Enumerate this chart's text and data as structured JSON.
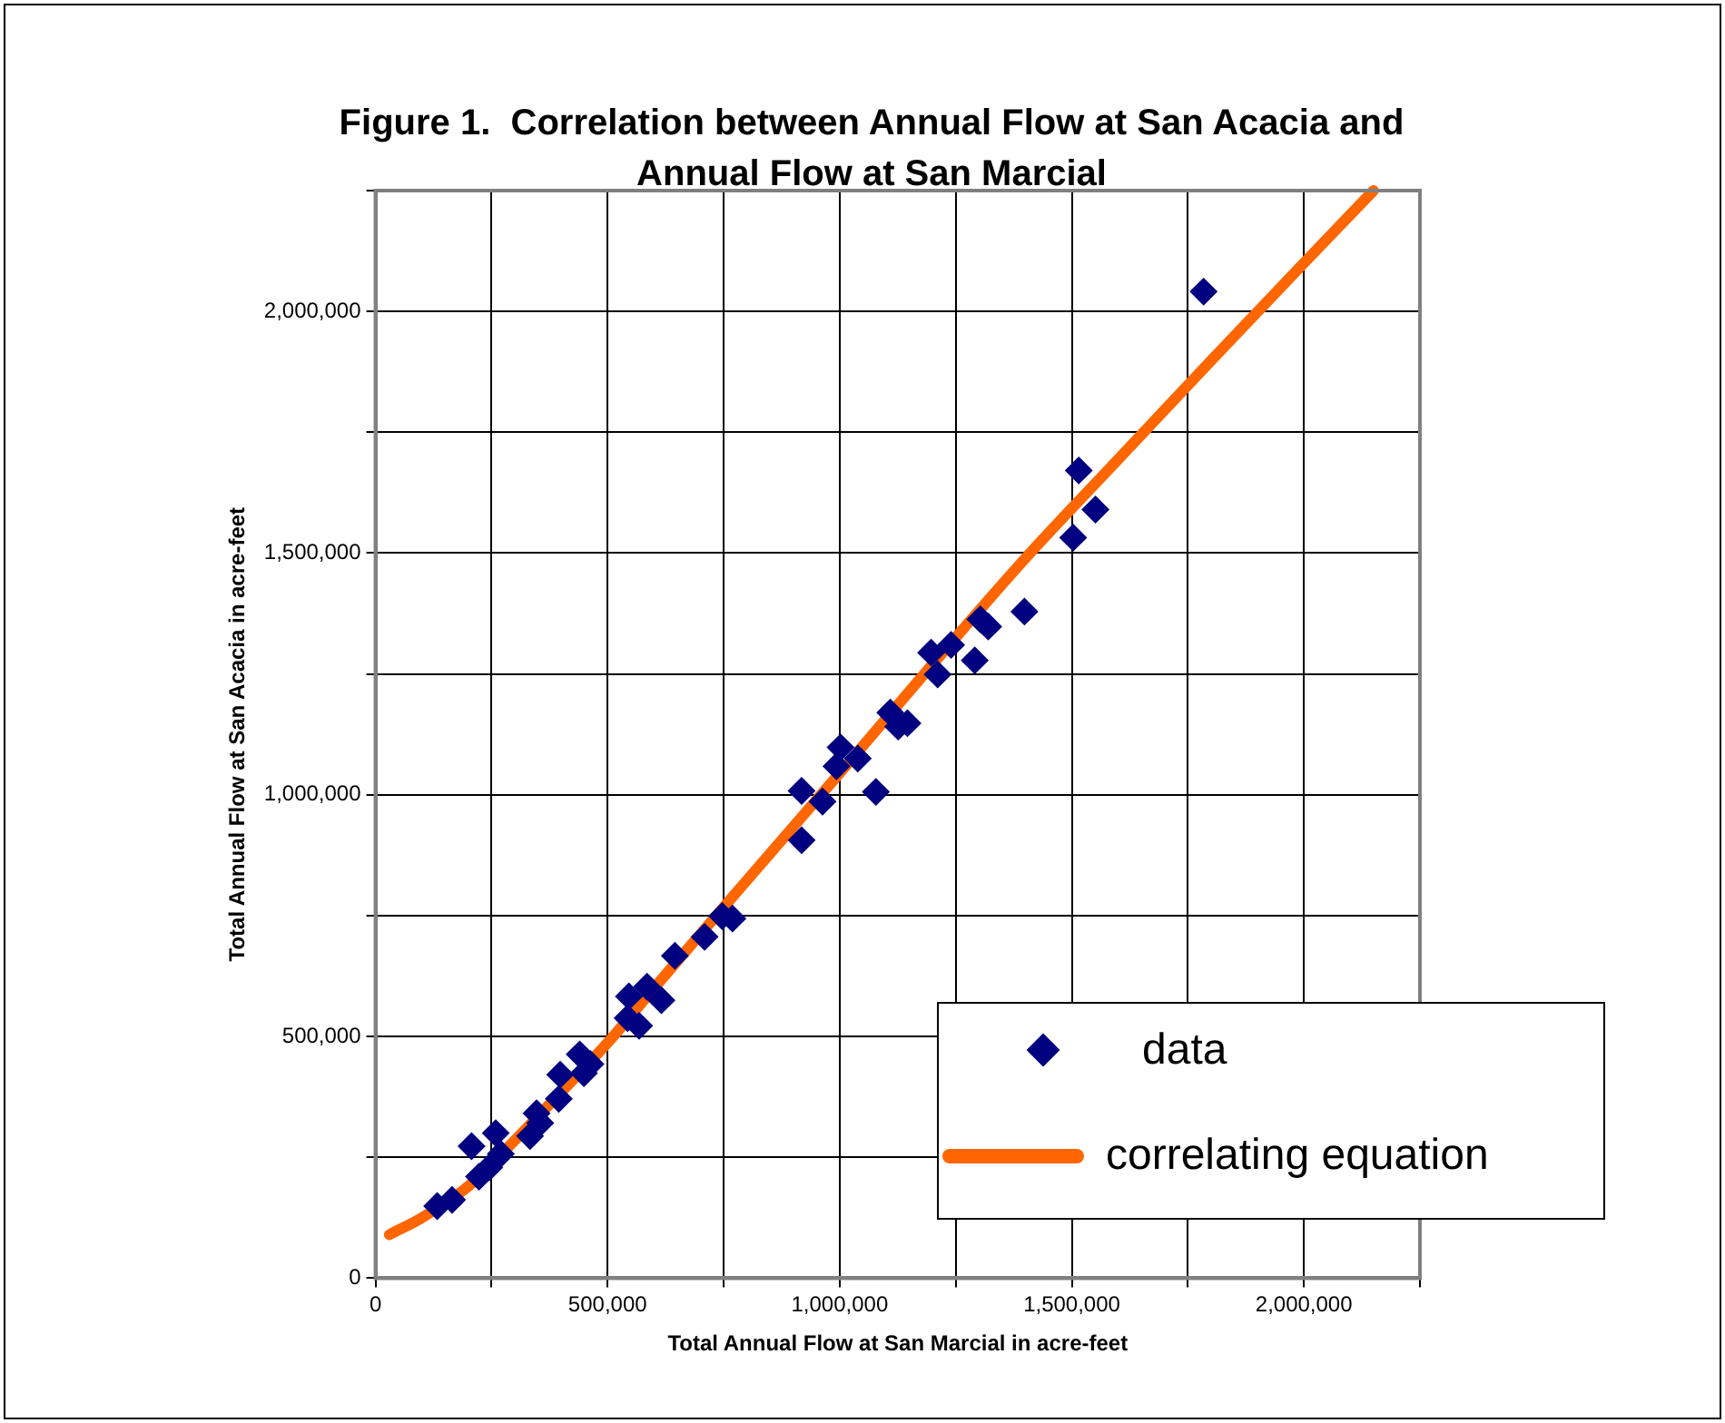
{
  "chart_data": {
    "type": "scatter",
    "title": "Figure 1.  Correlation between Annual Flow at San Acacia and Annual Flow at San Marcial",
    "xlabel": "Total Annual Flow at San Marcial in acre-feet",
    "ylabel": "Total Annual Flow at San Acacia in acre-feet",
    "xlim": [
      0,
      2250000
    ],
    "ylim": [
      0,
      2250000
    ],
    "xticks": [
      {
        "value": 0,
        "label": "0"
      },
      {
        "value": 250000,
        "label": null
      },
      {
        "value": 500000,
        "label": "500,000"
      },
      {
        "value": 750000,
        "label": null
      },
      {
        "value": 1000000,
        "label": "1,000,000"
      },
      {
        "value": 1250000,
        "label": null
      },
      {
        "value": 1500000,
        "label": "1,500,000"
      },
      {
        "value": 1750000,
        "label": null
      },
      {
        "value": 2000000,
        "label": "2,000,000"
      },
      {
        "value": 2250000,
        "label": null
      }
    ],
    "yticks": [
      {
        "value": 0,
        "label": "0"
      },
      {
        "value": 250000,
        "label": null
      },
      {
        "value": 500000,
        "label": "500,000"
      },
      {
        "value": 750000,
        "label": null
      },
      {
        "value": 1000000,
        "label": "1,000,000"
      },
      {
        "value": 1250000,
        "label": null
      },
      {
        "value": 1500000,
        "label": "1,500,000"
      },
      {
        "value": 1750000,
        "label": null
      },
      {
        "value": 2000000,
        "label": "2,000,000"
      },
      {
        "value": 2250000,
        "label": null
      }
    ],
    "grid": true,
    "legend": "bottom right",
    "series": [
      {
        "name": "data",
        "type": "scatter",
        "color": "#000080",
        "marker": "diamond",
        "x": [
          133000,
          165000,
          207000,
          223000,
          245000,
          259000,
          270000,
          333000,
          347000,
          355000,
          395000,
          398000,
          440000,
          449000,
          463000,
          543000,
          546000,
          568000,
          585000,
          616000,
          645000,
          709000,
          747000,
          769000,
          918000,
          918000,
          963000,
          993000,
          1002000,
          1039000,
          1078000,
          1109000,
          1126000,
          1146000,
          1197000,
          1211000,
          1240000,
          1291000,
          1303000,
          1320000,
          1398000,
          1503000,
          1515000,
          1551000,
          1784000
        ],
        "values": [
          149000,
          162000,
          273000,
          210000,
          229000,
          300000,
          257000,
          294000,
          341000,
          321000,
          371000,
          421000,
          463000,
          424000,
          443000,
          538000,
          583000,
          522000,
          603000,
          575000,
          667000,
          706000,
          749000,
          744000,
          906000,
          1008000,
          986000,
          1059000,
          1098000,
          1075000,
          1006000,
          1170000,
          1141000,
          1148000,
          1294000,
          1249000,
          1310000,
          1278000,
          1363000,
          1348000,
          1379000,
          1532000,
          1671000,
          1590000,
          2041000
        ]
      },
      {
        "name": "correlating equation",
        "type": "line",
        "color": "#ff6600",
        "marker": "none",
        "x": [
          30000,
          100000,
          200000,
          300000,
          400000,
          500000,
          600000,
          755000,
          1000000,
          1200000,
          1410000,
          1600000,
          1800000,
          2000000,
          2150000
        ],
        "values": [
          90000,
          125000,
          190000,
          285000,
          385000,
          487000,
          600000,
          773000,
          1045000,
          1270000,
          1500000,
          1694000,
          1898000,
          2100000,
          2250000
        ]
      }
    ]
  }
}
